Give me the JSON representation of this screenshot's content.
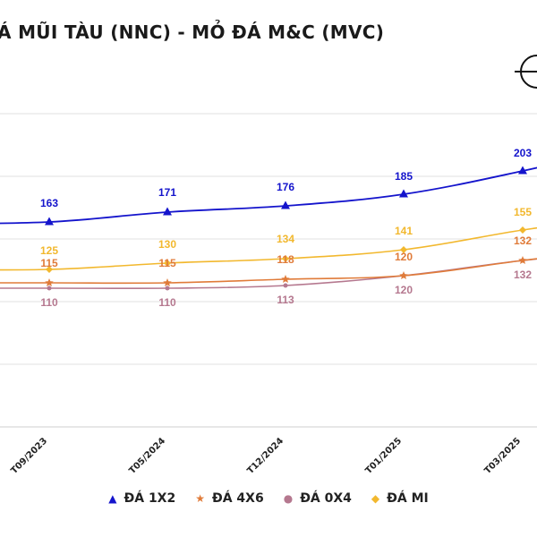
{
  "chart_data": {
    "type": "line",
    "title": "ĐÁ MŨI TÀU (NNC) - MỎ ĐÁ M&C (MVC)",
    "categories": [
      "T09/2023",
      "T05/2024",
      "T12/2024",
      "T01/2025",
      "T03/2025"
    ],
    "x_axis_label_text": [
      "T09/2023",
      "T05/2024",
      "T12/2024",
      "T01/2025",
      "T03/2025"
    ],
    "xlabel": "",
    "ylabel": "",
    "grid": "horizontal",
    "legend_position": "bottom",
    "series": [
      {
        "name": "ĐÁ 1X2",
        "color": "#1414cc",
        "marker": "triangle",
        "values": [
          163,
          171,
          176,
          185,
          203
        ],
        "labels": [
          "163",
          "171",
          "176",
          "185",
          "203"
        ]
      },
      {
        "name": "ĐÁ 4X6",
        "color": "#e07b39",
        "marker": "star",
        "values": [
          115,
          115,
          118,
          120,
          132
        ],
        "labels": [
          "115",
          "115",
          "118",
          "120",
          "132"
        ]
      },
      {
        "name": "ĐÁ 0X4",
        "color": "#b5788f",
        "marker": "circle",
        "values": [
          110,
          110,
          113,
          120,
          132
        ],
        "labels": [
          "110",
          "110",
          "113",
          "120",
          "132"
        ]
      },
      {
        "name": "ĐÁ MI",
        "color": "#f2b82e",
        "marker": "diamond",
        "values": [
          125,
          130,
          134,
          141,
          155
        ],
        "labels": [
          "125",
          "130",
          "134",
          "141",
          "155"
        ]
      }
    ]
  }
}
